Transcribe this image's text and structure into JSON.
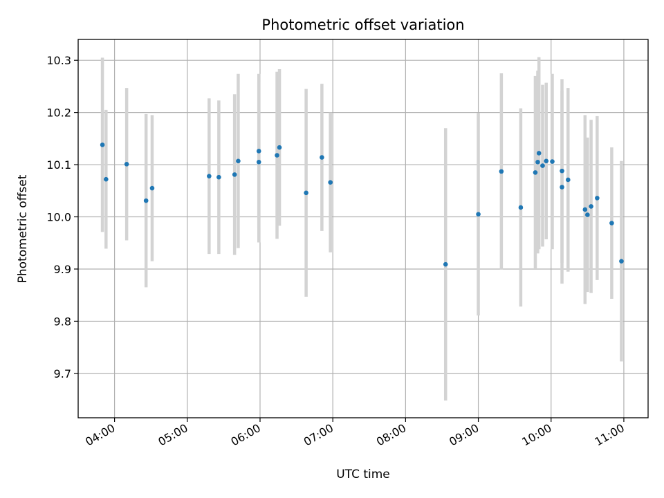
{
  "chart_data": {
    "type": "scatter",
    "title": "Photometric offset variation",
    "xlabel": "UTC time",
    "ylabel": "Photometric offset",
    "xlim": [
      "03:30",
      "11:20"
    ],
    "ylim": [
      9.615,
      10.34
    ],
    "x_ticks": [
      "04:00",
      "05:00",
      "06:00",
      "07:00",
      "08:00",
      "09:00",
      "10:00",
      "11:00"
    ],
    "y_ticks": [
      "9.7",
      "9.8",
      "9.9",
      "10.0",
      "10.1",
      "10.2",
      "10.3"
    ],
    "grid": true,
    "colors": {
      "point": "#1f77b4",
      "errorbar": "#d3d3d3",
      "grid": "#b0b0b0"
    },
    "series": [
      {
        "x": [
          "03:50",
          "03:53",
          "04:10",
          "04:26",
          "04:31",
          "05:18",
          "05:26",
          "05:39",
          "05:42",
          "05:59",
          "05:59",
          "06:14",
          "06:16",
          "06:38",
          "06:51",
          "06:58",
          "08:33",
          "09:00",
          "09:19",
          "09:35",
          "09:47",
          "09:49",
          "09:50",
          "09:53",
          "09:56",
          "10:01",
          "10:09",
          "10:09",
          "10:14",
          "10:28",
          "10:30",
          "10:33",
          "10:38",
          "10:50",
          "10:58"
        ],
        "y": [
          10.138,
          10.072,
          10.101,
          10.031,
          10.055,
          10.078,
          10.076,
          10.081,
          10.107,
          10.126,
          10.105,
          10.118,
          10.133,
          10.046,
          10.114,
          10.066,
          9.909,
          10.005,
          10.087,
          10.018,
          10.085,
          10.105,
          10.122,
          10.098,
          10.107,
          10.106,
          10.088,
          10.057,
          10.071,
          10.014,
          10.004,
          10.02,
          10.036,
          9.988,
          9.915
        ],
        "yerr": [
          0.167,
          0.133,
          0.146,
          0.166,
          0.14,
          0.149,
          0.147,
          0.154,
          0.167,
          0.148,
          0.154,
          0.16,
          0.15,
          0.199,
          0.141,
          0.134,
          0.261,
          0.194,
          0.188,
          0.19,
          0.185,
          0.175,
          0.184,
          0.155,
          0.15,
          0.168,
          0.176,
          0.185,
          0.176,
          0.181,
          0.148,
          0.166,
          0.157,
          0.145,
          0.192
        ]
      }
    ]
  }
}
